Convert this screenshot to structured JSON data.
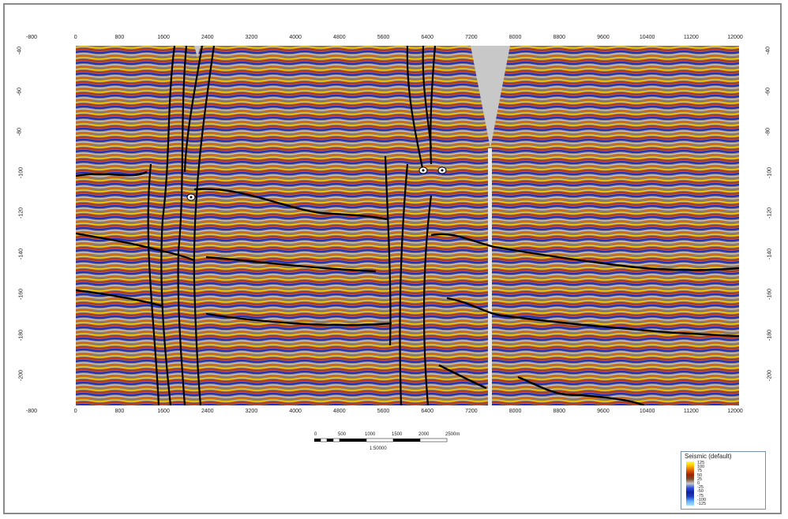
{
  "axes": {
    "x_ticks_top": [
      "-800",
      "0",
      "800",
      "1600",
      "2400",
      "3200",
      "4000",
      "4800",
      "5600",
      "6400",
      "7200",
      "8000",
      "8800",
      "9600",
      "10400",
      "11200",
      "12000"
    ],
    "x_ticks_bottom": [
      "-800",
      "0",
      "800",
      "1600",
      "2400",
      "3200",
      "4000",
      "4800",
      "5600",
      "6400",
      "7200",
      "8000",
      "8800",
      "9600",
      "10400",
      "11200",
      "12000"
    ],
    "y_ticks_left": [
      "-40",
      "-60",
      "-80",
      "-100",
      "-120",
      "-140",
      "-160",
      "-180",
      "-200"
    ],
    "y_ticks_right": [
      "-40",
      "-60",
      "-80",
      "-100",
      "-120",
      "-140",
      "-160",
      "-180",
      "-200"
    ]
  },
  "scale_bar": {
    "labels": [
      "0",
      "500",
      "1000",
      "1500",
      "2000",
      "2500m"
    ],
    "ratio": "1:50000"
  },
  "legend": {
    "title": "Seismic (default)",
    "labels": [
      "125",
      "100",
      "75",
      "50",
      "25",
      "0",
      "-25",
      "-50",
      "-75",
      "-100",
      "-125"
    ],
    "colors": [
      "#ffff40",
      "#ffc000",
      "#e06000",
      "#a02000",
      "#7a5030",
      "#c8c8c8",
      "#3050e0",
      "#1020a0",
      "#2040c0",
      "#60b0ff",
      "#b0e0ff"
    ]
  },
  "icons": [
    "well-marker-icon"
  ]
}
